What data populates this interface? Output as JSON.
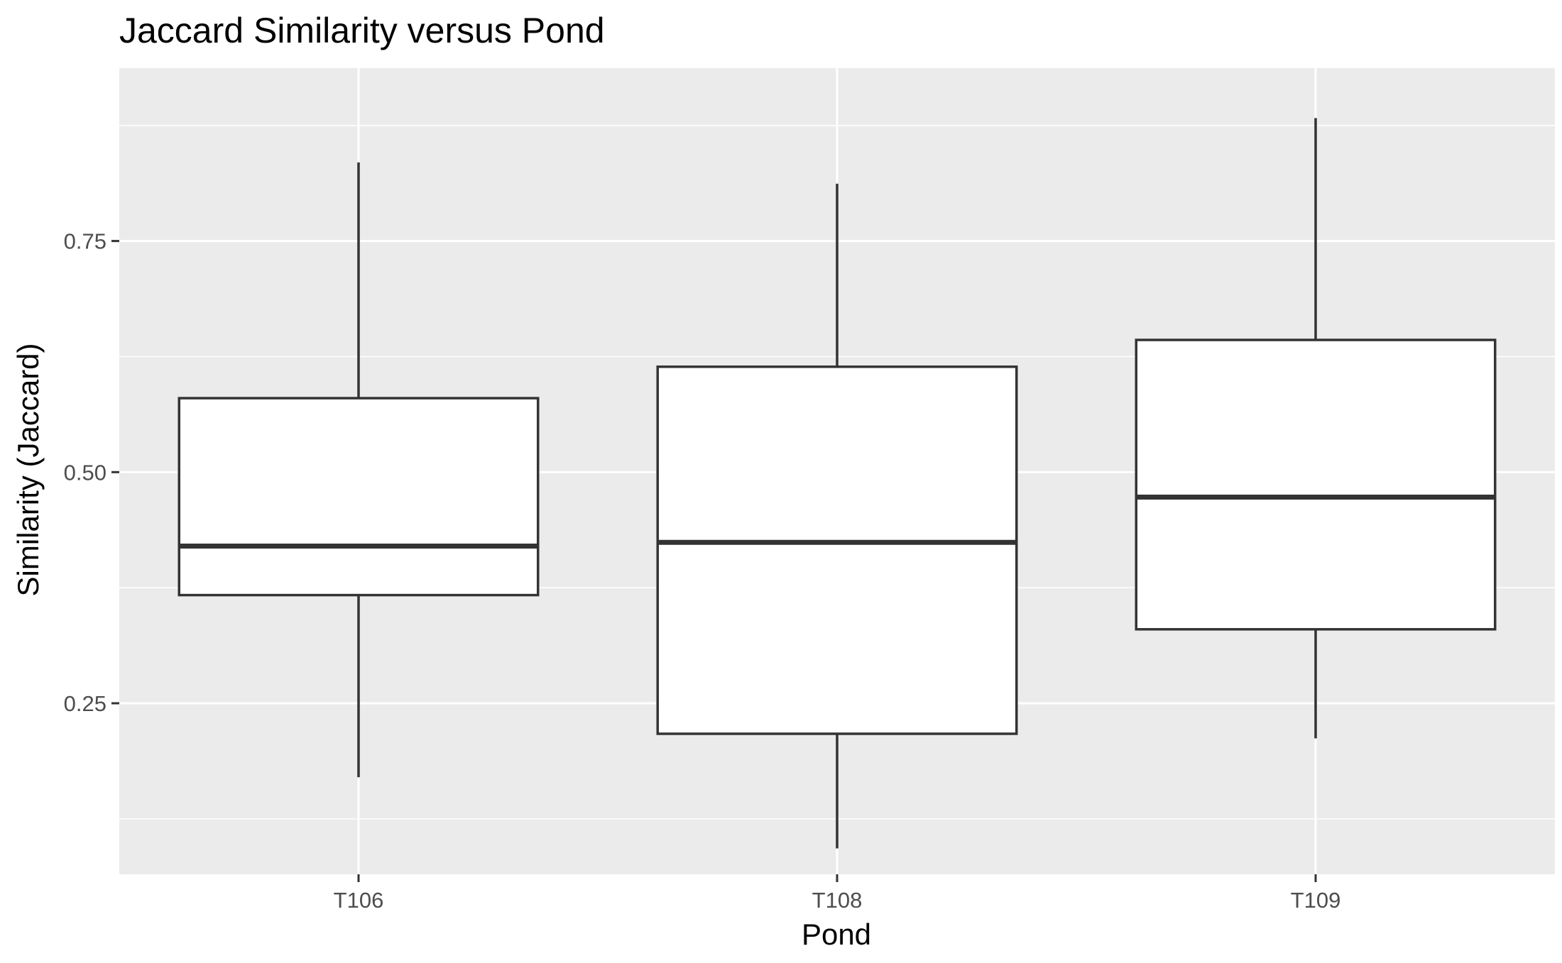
{
  "chart_data": {
    "type": "boxplot",
    "title": "Jaccard Similarity versus Pond",
    "xlabel": "Pond",
    "ylabel": "Similarity (Jaccard)",
    "categories": [
      "T106",
      "T108",
      "T109"
    ],
    "boxes": [
      {
        "category": "T106",
        "whisker_low": 0.17,
        "q1": 0.367,
        "median": 0.42,
        "q3": 0.58,
        "whisker_high": 0.835
      },
      {
        "category": "T108",
        "whisker_low": 0.093,
        "q1": 0.217,
        "median": 0.424,
        "q3": 0.614,
        "whisker_high": 0.812
      },
      {
        "category": "T109",
        "whisker_low": 0.212,
        "q1": 0.33,
        "median": 0.473,
        "q3": 0.643,
        "whisker_high": 0.883
      }
    ],
    "y_ticks": [
      0.25,
      0.5,
      0.75
    ],
    "y_tick_labels": [
      "0.25",
      "0.50",
      "0.75"
    ],
    "ylim": [
      0.065,
      0.937
    ],
    "grid": true,
    "colors": {
      "panel_background": "#ebebeb",
      "grid": "#ffffff",
      "box_fill": "#ffffff",
      "box_stroke": "#333333",
      "tick_label": "#4d4d4d"
    }
  }
}
